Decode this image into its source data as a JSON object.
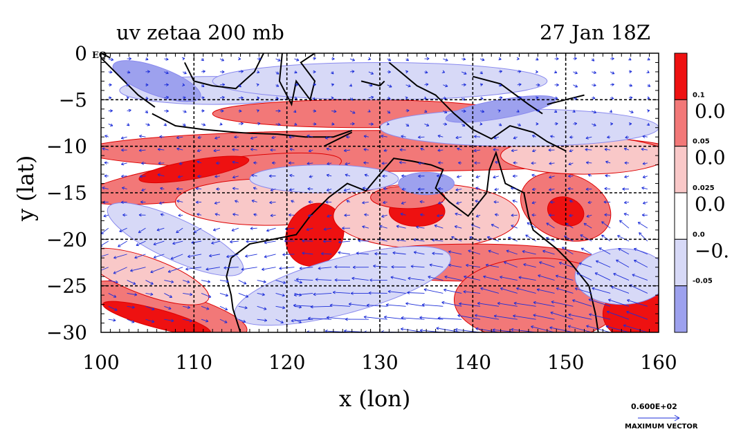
{
  "chart_data": {
    "type": "heatmap",
    "title_left": "uv  zetaa  200  mb",
    "title_right": "27  Jan  18Z",
    "xlabel": "x  (lon)",
    "ylabel": "y  (lat)",
    "xlim": [
      100,
      160
    ],
    "ylim": [
      -30,
      0
    ],
    "x_ticks": [
      100,
      110,
      120,
      130,
      140,
      150,
      160
    ],
    "x_tick_labels": [
      "100",
      "110",
      "120",
      "130",
      "140",
      "150",
      "160"
    ],
    "y_ticks": [
      0,
      -5,
      -10,
      -15,
      -20,
      -25,
      -30
    ],
    "y_tick_labels": [
      "0",
      "−5",
      "−10",
      "−15",
      "−20",
      "−25",
      "−30"
    ],
    "eq_label": "EQ",
    "grid": true,
    "colorbar": {
      "levels": [
        0.1,
        0.05,
        0.025,
        0.0,
        -0.05
      ],
      "small_labels": [
        "0.1",
        "0.05",
        "0.025",
        "0.0",
        "-0.05"
      ],
      "big_labels": [
        "0.0",
        "0.0",
        "0.0",
        "−0."
      ],
      "colors": [
        "#ee1111",
        "#f27878",
        "#f9c8c8",
        "#ffffff",
        "#d7d9f7",
        "#9da1ee"
      ]
    },
    "vector_reference": {
      "value": "0.600E+02",
      "label": "MAXIMUM  VECTOR"
    },
    "colors": {
      "positive_strong": "#ee1111",
      "positive_mid": "#f27878",
      "positive_light": "#f9c8c8",
      "negative_light": "#d7d9f7",
      "negative_mid": "#9da1ee",
      "contour_red": "#dd0000",
      "contour_blue": "#8888ee",
      "vectors": "#1c2dd8",
      "coast": "#000000"
    }
  }
}
